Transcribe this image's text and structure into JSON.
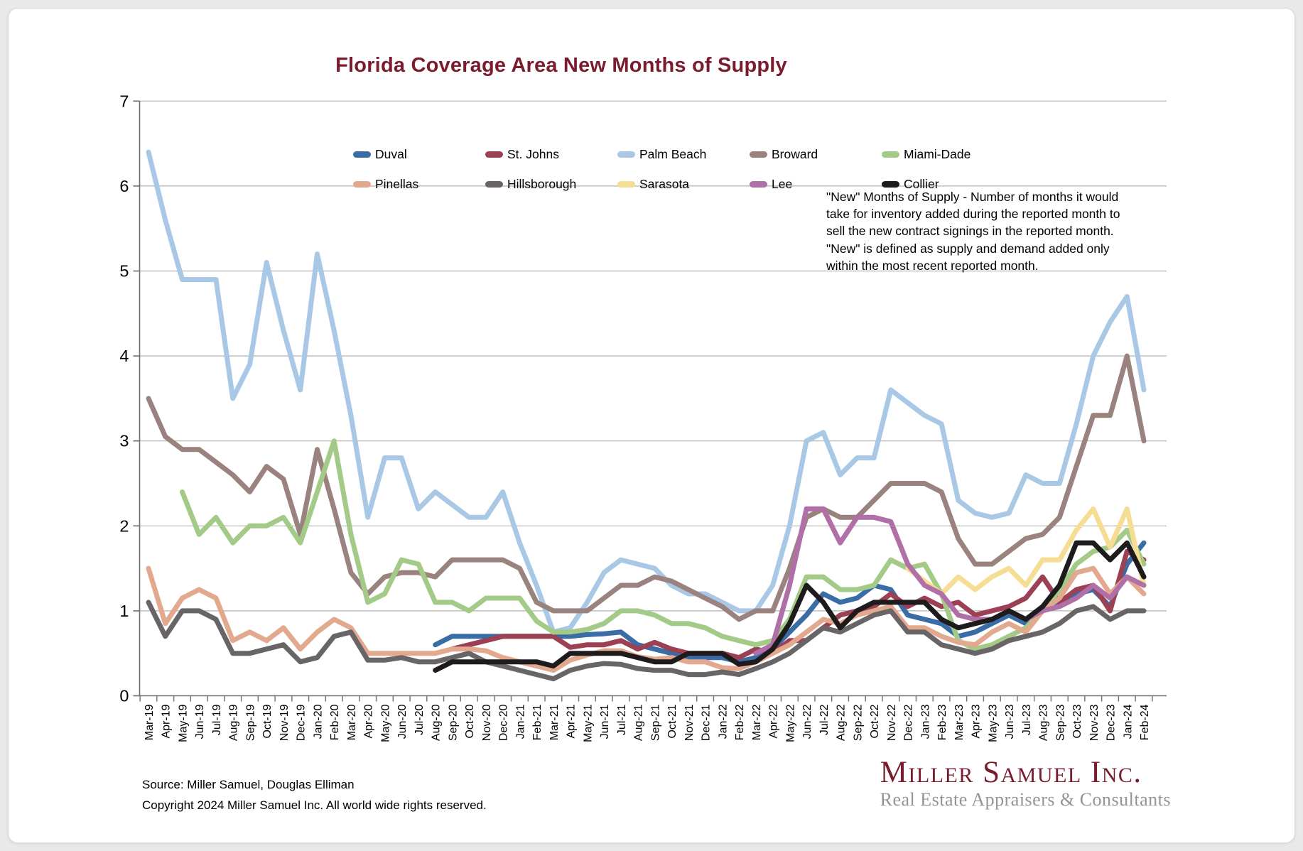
{
  "title": "Florida Coverage Area New Months of Supply",
  "annotation": {
    "lines": [
      "\"New\" Months of Supply - Number of months it would",
      "take for inventory added during the reported month to",
      "sell the new contract signings in the reported month.",
      "\"New\" is defined as supply and demand added only",
      "within the most recent reported month."
    ]
  },
  "footer": {
    "source": "Source: Miller Samuel, Douglas Elliman",
    "copyright": "Copyright 2024 Miller Samuel Inc.  All world wide rights reserved."
  },
  "logo": {
    "name": "Miller Samuel Inc.",
    "tagline": "Real Estate Appraisers & Consultants"
  },
  "colors": {
    "title_maroon": "#7a1c2e",
    "gridline": "#b2b2b2",
    "axis": "#6e6e6e",
    "tick_text": "#000000"
  },
  "chart_data": {
    "type": "line",
    "title": "Florida Coverage Area New Months of Supply",
    "xlabel": "",
    "ylabel": "",
    "ylim": [
      0,
      7
    ],
    "yticks": [
      0,
      1,
      2,
      3,
      4,
      5,
      6,
      7
    ],
    "grid": true,
    "legend_position": "top",
    "x_labels": [
      "Mar-19",
      "Apr-19",
      "May-19",
      "Jun-19",
      "Jul-19",
      "Aug-19",
      "Sep-19",
      "Oct-19",
      "Nov-19",
      "Dec-19",
      "Jan-20",
      "Feb-20",
      "Mar-20",
      "Apr-20",
      "May-20",
      "Jun-20",
      "Jul-20",
      "Aug-20",
      "Sep-20",
      "Oct-20",
      "Nov-20",
      "Dec-20",
      "Jan-21",
      "Feb-21",
      "Mar-21",
      "Apr-21",
      "May-21",
      "Jun-21",
      "Jul-21",
      "Aug-21",
      "Sep-21",
      "Oct-21",
      "Nov-21",
      "Dec-21",
      "Jan-22",
      "Feb-22",
      "Mar-22",
      "Apr-22",
      "May-22",
      "Jun-22",
      "Jul-22",
      "Aug-22",
      "Sep-22",
      "Oct-22",
      "Nov-22",
      "Dec-22",
      "Jan-23",
      "Feb-23",
      "Mar-23",
      "Apr-23",
      "May-23",
      "Jun-23",
      "Jul-23",
      "Aug-23",
      "Sep-23",
      "Oct-23",
      "Nov-23",
      "Dec-23",
      "Jan-24",
      "Feb-24"
    ],
    "series": [
      {
        "name": "Duval",
        "color": "#3a6ca6",
        "values": [
          null,
          null,
          null,
          null,
          null,
          null,
          null,
          null,
          null,
          null,
          null,
          null,
          null,
          null,
          null,
          null,
          null,
          0.6,
          0.7,
          0.7,
          0.7,
          0.7,
          0.7,
          0.7,
          0.7,
          0.7,
          0.72,
          0.73,
          0.75,
          0.6,
          0.55,
          0.5,
          0.45,
          0.45,
          0.45,
          0.4,
          0.45,
          0.55,
          0.75,
          0.95,
          1.2,
          1.1,
          1.15,
          1.3,
          1.25,
          0.95,
          0.9,
          0.85,
          0.7,
          0.75,
          0.85,
          0.95,
          0.85,
          1.0,
          1.1,
          1.2,
          1.25,
          1.05,
          1.55,
          1.8
        ]
      },
      {
        "name": "St. Johns",
        "color": "#9c4054",
        "values": [
          null,
          null,
          null,
          null,
          null,
          null,
          null,
          null,
          null,
          null,
          null,
          null,
          null,
          null,
          null,
          null,
          null,
          null,
          0.55,
          0.6,
          0.65,
          0.7,
          0.7,
          0.7,
          0.7,
          0.57,
          0.6,
          0.6,
          0.65,
          0.55,
          0.63,
          0.55,
          0.5,
          0.5,
          0.5,
          0.45,
          0.55,
          0.5,
          0.65,
          0.65,
          0.8,
          0.95,
          1.0,
          1.05,
          1.2,
          1.05,
          1.15,
          1.05,
          1.1,
          0.95,
          1.0,
          1.05,
          1.15,
          1.4,
          1.1,
          1.25,
          1.3,
          1.0,
          1.7,
          1.6
        ]
      },
      {
        "name": "Palm Beach",
        "color": "#a9c8e6",
        "values": [
          6.4,
          5.6,
          4.9,
          4.9,
          4.9,
          3.5,
          3.9,
          5.1,
          4.3,
          3.6,
          5.2,
          4.3,
          3.3,
          2.1,
          2.8,
          2.8,
          2.2,
          2.4,
          2.25,
          2.1,
          2.1,
          2.4,
          1.8,
          1.3,
          0.75,
          0.8,
          1.1,
          1.45,
          1.6,
          1.55,
          1.5,
          1.3,
          1.2,
          1.2,
          1.1,
          1.0,
          1.0,
          1.3,
          2.0,
          3.0,
          3.1,
          2.6,
          2.8,
          2.8,
          3.6,
          3.45,
          3.3,
          3.2,
          2.3,
          2.15,
          2.1,
          2.15,
          2.6,
          2.5,
          2.5,
          3.2,
          4.0,
          4.4,
          4.7,
          3.6
        ]
      },
      {
        "name": "Broward",
        "color": "#9a827e",
        "values": [
          3.5,
          3.05,
          2.9,
          2.9,
          2.75,
          2.6,
          2.4,
          2.7,
          2.55,
          1.9,
          2.9,
          2.2,
          1.45,
          1.2,
          1.4,
          1.45,
          1.45,
          1.4,
          1.6,
          1.6,
          1.6,
          1.6,
          1.5,
          1.1,
          1.0,
          1.0,
          1.0,
          1.15,
          1.3,
          1.3,
          1.4,
          1.35,
          1.25,
          1.15,
          1.05,
          0.9,
          1.0,
          1.0,
          1.5,
          2.1,
          2.2,
          2.1,
          2.1,
          2.3,
          2.5,
          2.5,
          2.5,
          2.4,
          1.85,
          1.55,
          1.55,
          1.7,
          1.85,
          1.9,
          2.1,
          2.7,
          3.3,
          3.3,
          4.0,
          3.0
        ]
      },
      {
        "name": "Miami-Dade",
        "color": "#a3cb87",
        "values": [
          null,
          null,
          2.4,
          1.9,
          2.1,
          1.8,
          2.0,
          2.0,
          2.1,
          1.8,
          2.4,
          3.0,
          1.9,
          1.1,
          1.2,
          1.6,
          1.55,
          1.1,
          1.1,
          1.0,
          1.15,
          1.15,
          1.15,
          0.88,
          0.75,
          0.75,
          0.78,
          0.85,
          1.0,
          1.0,
          0.95,
          0.85,
          0.85,
          0.8,
          0.7,
          0.65,
          0.6,
          0.65,
          0.9,
          1.4,
          1.4,
          1.25,
          1.25,
          1.3,
          1.6,
          1.5,
          1.55,
          1.2,
          0.65,
          0.55,
          0.6,
          0.7,
          0.8,
          1.0,
          1.25,
          1.55,
          1.7,
          1.75,
          1.95,
          1.55
        ]
      },
      {
        "name": "Pinellas",
        "color": "#e3a98f",
        "values": [
          1.5,
          0.85,
          1.15,
          1.25,
          1.15,
          0.65,
          0.75,
          0.65,
          0.8,
          0.55,
          0.75,
          0.9,
          0.8,
          0.5,
          0.5,
          0.5,
          0.5,
          0.5,
          0.55,
          0.55,
          0.53,
          0.45,
          0.4,
          0.35,
          0.3,
          0.42,
          0.48,
          0.53,
          0.53,
          0.46,
          0.43,
          0.45,
          0.4,
          0.4,
          0.33,
          0.32,
          0.4,
          0.5,
          0.6,
          0.75,
          0.9,
          0.85,
          0.95,
          1.0,
          1.05,
          0.8,
          0.8,
          0.7,
          0.63,
          0.6,
          0.75,
          0.85,
          0.75,
          1.0,
          1.15,
          1.45,
          1.5,
          1.2,
          1.4,
          1.2
        ]
      },
      {
        "name": "Hillsborough",
        "color": "#696566",
        "values": [
          1.1,
          0.7,
          1.0,
          1.0,
          0.9,
          0.5,
          0.5,
          0.55,
          0.6,
          0.4,
          0.45,
          0.7,
          0.75,
          0.42,
          0.42,
          0.45,
          0.4,
          0.4,
          0.45,
          0.5,
          0.4,
          0.35,
          0.3,
          0.25,
          0.2,
          0.3,
          0.35,
          0.38,
          0.37,
          0.32,
          0.3,
          0.3,
          0.25,
          0.25,
          0.28,
          0.25,
          0.32,
          0.4,
          0.5,
          0.65,
          0.8,
          0.75,
          0.85,
          0.95,
          1.0,
          0.75,
          0.75,
          0.6,
          0.55,
          0.5,
          0.55,
          0.65,
          0.7,
          0.75,
          0.85,
          1.0,
          1.05,
          0.9,
          1.0,
          1.0
        ]
      },
      {
        "name": "Sarasota",
        "color": "#f5de94",
        "values": [
          null,
          null,
          null,
          null,
          null,
          null,
          null,
          null,
          null,
          null,
          null,
          null,
          null,
          null,
          null,
          null,
          null,
          null,
          null,
          null,
          null,
          null,
          null,
          null,
          null,
          null,
          null,
          null,
          null,
          null,
          null,
          null,
          null,
          null,
          null,
          null,
          null,
          null,
          null,
          null,
          null,
          null,
          null,
          null,
          null,
          1.5,
          1.35,
          1.2,
          1.4,
          1.25,
          1.4,
          1.5,
          1.3,
          1.6,
          1.6,
          1.95,
          2.2,
          1.75,
          2.2,
          1.3
        ]
      },
      {
        "name": "Lee",
        "color": "#b06fa6",
        "values": [
          null,
          null,
          null,
          null,
          null,
          null,
          null,
          null,
          null,
          null,
          null,
          null,
          null,
          null,
          null,
          null,
          null,
          null,
          null,
          null,
          null,
          null,
          null,
          null,
          null,
          null,
          null,
          null,
          null,
          null,
          null,
          null,
          null,
          null,
          null,
          null,
          0.5,
          0.6,
          1.3,
          2.2,
          2.2,
          1.8,
          2.1,
          2.1,
          2.05,
          1.55,
          1.3,
          1.2,
          0.95,
          0.9,
          0.9,
          1.0,
          0.9,
          1.0,
          1.05,
          1.15,
          1.3,
          1.15,
          1.4,
          1.3
        ]
      },
      {
        "name": "Collier",
        "color": "#1e1b1c",
        "values": [
          null,
          null,
          null,
          null,
          null,
          null,
          null,
          null,
          null,
          null,
          null,
          null,
          null,
          null,
          null,
          null,
          null,
          0.3,
          0.4,
          0.4,
          0.4,
          0.4,
          0.4,
          0.4,
          0.35,
          0.5,
          0.5,
          0.5,
          0.5,
          0.45,
          0.4,
          0.4,
          0.5,
          0.5,
          0.5,
          0.37,
          0.4,
          0.55,
          0.85,
          1.3,
          1.1,
          0.8,
          1.0,
          1.1,
          1.1,
          1.1,
          1.1,
          0.9,
          0.8,
          0.85,
          0.9,
          1.0,
          0.9,
          1.05,
          1.3,
          1.8,
          1.8,
          1.6,
          1.8,
          1.4
        ]
      }
    ]
  }
}
